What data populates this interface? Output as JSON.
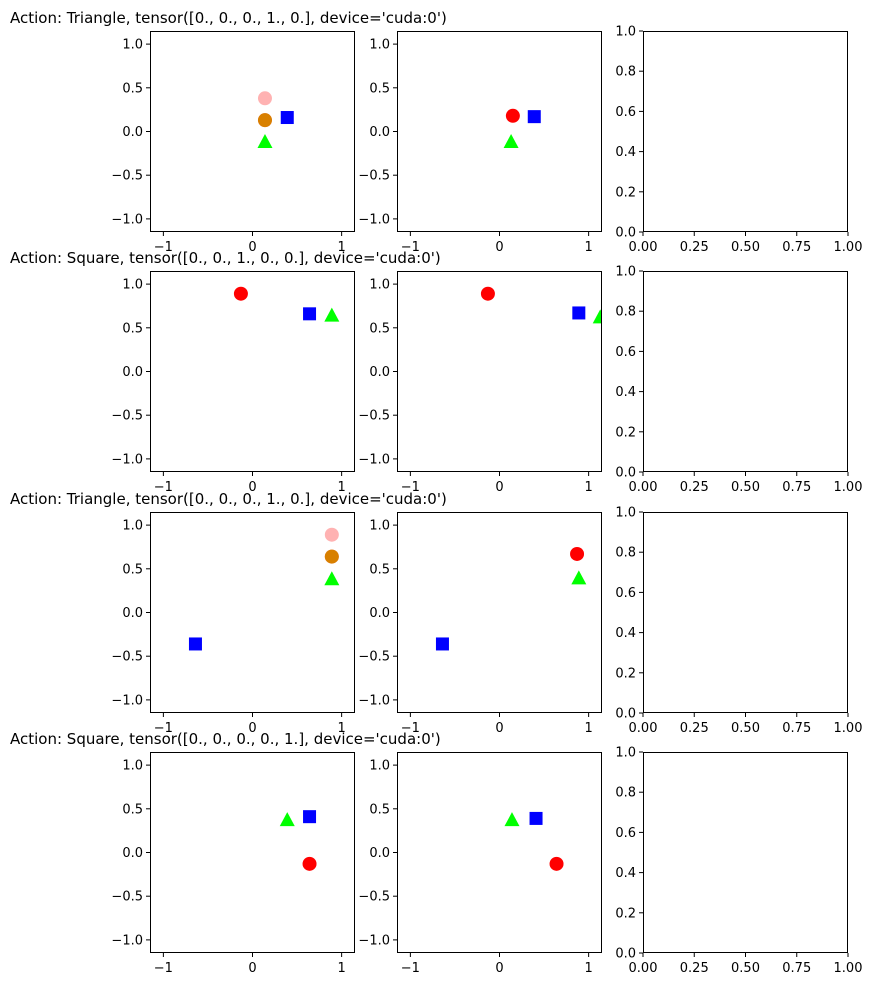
{
  "chart_data": [
    {
      "type": "scatter",
      "title": "Action: Triangle, tensor([0., 0., 0., 1., 0.], device='cuda:0')",
      "panels": [
        {
          "xlim": [
            -1.15,
            1.15
          ],
          "ylim": [
            -1.15,
            1.15
          ],
          "xticks": [
            -1,
            0,
            1
          ],
          "yticks": [
            -1.0,
            -0.5,
            0.0,
            0.5,
            1.0
          ],
          "points": [
            {
              "shape": "circle",
              "color": "#ffb2b2",
              "x": 0.14,
              "y": 0.38
            },
            {
              "shape": "circle",
              "color": "#ff0000",
              "x": 0.14,
              "y": 0.13
            },
            {
              "shape": "circle",
              "color": "#b2ff00",
              "x": 0.14,
              "y": 0.13,
              "alpha": 0.5
            },
            {
              "shape": "triangle",
              "color": "#00ff00",
              "x": 0.14,
              "y": -0.12
            },
            {
              "shape": "square",
              "color": "#0000ff",
              "x": 0.39,
              "y": 0.16
            }
          ]
        },
        {
          "xlim": [
            -1.15,
            1.15
          ],
          "ylim": [
            -1.15,
            1.15
          ],
          "xticks": [
            -1,
            0,
            1
          ],
          "yticks": [
            -1.0,
            -0.5,
            0.0,
            0.5,
            1.0
          ],
          "points": [
            {
              "shape": "circle",
              "color": "#ff0000",
              "x": 0.15,
              "y": 0.18
            },
            {
              "shape": "triangle",
              "color": "#00ff00",
              "x": 0.13,
              "y": -0.12
            },
            {
              "shape": "square",
              "color": "#0000ff",
              "x": 0.39,
              "y": 0.17
            }
          ]
        },
        {
          "xlim": [
            0,
            1
          ],
          "ylim": [
            0,
            1
          ],
          "xticks": [
            0.0,
            0.25,
            0.5,
            0.75,
            1.0
          ],
          "yticks": [
            0.0,
            0.2,
            0.4,
            0.6,
            0.8,
            1.0
          ],
          "points": []
        }
      ]
    },
    {
      "type": "scatter",
      "title": "Action: Square, tensor([0., 0., 1., 0., 0.], device='cuda:0')",
      "panels": [
        {
          "xlim": [
            -1.15,
            1.15
          ],
          "ylim": [
            -1.15,
            1.15
          ],
          "xticks": [
            -1,
            0,
            1
          ],
          "yticks": [
            -1.0,
            -0.5,
            0.0,
            0.5,
            1.0
          ],
          "points": [
            {
              "shape": "circle",
              "color": "#ff0000",
              "x": -0.13,
              "y": 0.89
            },
            {
              "shape": "square",
              "color": "#0000ff",
              "x": 0.64,
              "y": 0.66
            },
            {
              "shape": "triangle",
              "color": "#00ff00",
              "x": 0.89,
              "y": 0.64
            }
          ]
        },
        {
          "xlim": [
            -1.15,
            1.15
          ],
          "ylim": [
            -1.15,
            1.15
          ],
          "xticks": [
            -1,
            0,
            1
          ],
          "yticks": [
            -1.0,
            -0.5,
            0.0,
            0.5,
            1.0
          ],
          "points": [
            {
              "shape": "circle",
              "color": "#ff0000",
              "x": -0.13,
              "y": 0.89
            },
            {
              "shape": "square",
              "color": "#0000ff",
              "x": 0.89,
              "y": 0.67
            },
            {
              "shape": "triangle",
              "color": "#00ff00",
              "x": 1.13,
              "y": 0.62
            }
          ]
        },
        {
          "xlim": [
            0,
            1
          ],
          "ylim": [
            0,
            1
          ],
          "xticks": [
            0.0,
            0.25,
            0.5,
            0.75,
            1.0
          ],
          "yticks": [
            0.0,
            0.2,
            0.4,
            0.6,
            0.8,
            1.0
          ],
          "points": []
        }
      ]
    },
    {
      "type": "scatter",
      "title": "Action: Triangle, tensor([0., 0., 0., 1., 0.], device='cuda:0')",
      "panels": [
        {
          "xlim": [
            -1.15,
            1.15
          ],
          "ylim": [
            -1.15,
            1.15
          ],
          "xticks": [
            -1,
            0,
            1
          ],
          "yticks": [
            -1.0,
            -0.5,
            0.0,
            0.5,
            1.0
          ],
          "points": [
            {
              "shape": "circle",
              "color": "#ffb2b2",
              "x": 0.89,
              "y": 0.89
            },
            {
              "shape": "circle",
              "color": "#ff0000",
              "x": 0.89,
              "y": 0.64
            },
            {
              "shape": "circle",
              "color": "#b2ff00",
              "x": 0.89,
              "y": 0.64,
              "alpha": 0.5
            },
            {
              "shape": "triangle",
              "color": "#00ff00",
              "x": 0.89,
              "y": 0.38
            },
            {
              "shape": "square",
              "color": "#0000ff",
              "x": -0.64,
              "y": -0.36
            }
          ]
        },
        {
          "xlim": [
            -1.15,
            1.15
          ],
          "ylim": [
            -1.15,
            1.15
          ],
          "xticks": [
            -1,
            0,
            1
          ],
          "yticks": [
            -1.0,
            -0.5,
            0.0,
            0.5,
            1.0
          ],
          "points": [
            {
              "shape": "circle",
              "color": "#ff0000",
              "x": 0.87,
              "y": 0.67
            },
            {
              "shape": "triangle",
              "color": "#00ff00",
              "x": 0.89,
              "y": 0.39
            },
            {
              "shape": "square",
              "color": "#0000ff",
              "x": -0.64,
              "y": -0.36
            }
          ]
        },
        {
          "xlim": [
            0,
            1
          ],
          "ylim": [
            0,
            1
          ],
          "xticks": [
            0.0,
            0.25,
            0.5,
            0.75,
            1.0
          ],
          "yticks": [
            0.0,
            0.2,
            0.4,
            0.6,
            0.8,
            1.0
          ],
          "points": []
        }
      ]
    },
    {
      "type": "scatter",
      "title": "Action: Square, tensor([0., 0., 0., 0., 1.], device='cuda:0')",
      "panels": [
        {
          "xlim": [
            -1.15,
            1.15
          ],
          "ylim": [
            -1.15,
            1.15
          ],
          "xticks": [
            -1,
            0,
            1
          ],
          "yticks": [
            -1.0,
            -0.5,
            0.0,
            0.5,
            1.0
          ],
          "points": [
            {
              "shape": "triangle",
              "color": "#00ff00",
              "x": 0.39,
              "y": 0.37
            },
            {
              "shape": "square",
              "color": "#0000ff",
              "x": 0.64,
              "y": 0.41
            },
            {
              "shape": "circle",
              "color": "#ff0000",
              "x": 0.64,
              "y": -0.13
            }
          ]
        },
        {
          "xlim": [
            -1.15,
            1.15
          ],
          "ylim": [
            -1.15,
            1.15
          ],
          "xticks": [
            -1,
            0,
            1
          ],
          "yticks": [
            -1.0,
            -0.5,
            0.0,
            0.5,
            1.0
          ],
          "points": [
            {
              "shape": "triangle",
              "color": "#00ff00",
              "x": 0.14,
              "y": 0.37
            },
            {
              "shape": "square",
              "color": "#0000ff",
              "x": 0.41,
              "y": 0.39
            },
            {
              "shape": "circle",
              "color": "#ff0000",
              "x": 0.64,
              "y": -0.13
            }
          ]
        },
        {
          "xlim": [
            0,
            1
          ],
          "ylim": [
            0,
            1
          ],
          "xticks": [
            0.0,
            0.25,
            0.5,
            0.75,
            1.0
          ],
          "yticks": [
            0.0,
            0.2,
            0.4,
            0.6,
            0.8,
            1.0
          ],
          "points": []
        }
      ]
    }
  ]
}
